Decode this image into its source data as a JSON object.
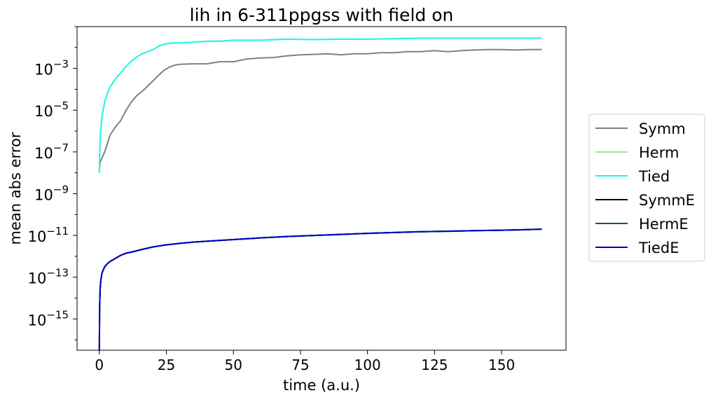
{
  "chart_data": {
    "type": "line",
    "title": "lih in 6-311ppgss with field on",
    "xlabel": "time (a.u.)",
    "ylabel": "mean abs error",
    "xlim": [
      -8.3,
      174
    ],
    "ylim_log10": [
      -16.5,
      -1.0
    ],
    "yscale": "log",
    "xticks": [
      0,
      25,
      50,
      75,
      100,
      125,
      150
    ],
    "yticks": [
      {
        "exp": -3,
        "base": "10",
        "sup": "−3"
      },
      {
        "exp": -5,
        "base": "10",
        "sup": "−5"
      },
      {
        "exp": -7,
        "base": "10",
        "sup": "−7"
      },
      {
        "exp": -9,
        "base": "10",
        "sup": "−9"
      },
      {
        "exp": -11,
        "base": "10",
        "sup": "−11"
      },
      {
        "exp": -13,
        "base": "10",
        "sup": "−13"
      },
      {
        "exp": -15,
        "base": "10",
        "sup": "−15"
      }
    ],
    "grid": false,
    "legend_position": "center-right-outside",
    "series": [
      {
        "name": "Symm",
        "color": "#808080",
        "x": [
          0,
          0.3,
          1,
          2,
          3,
          4,
          6,
          8,
          10,
          12,
          14,
          16,
          18,
          20,
          22,
          24,
          26,
          28,
          30,
          35,
          40,
          45,
          50,
          55,
          60,
          65,
          70,
          75,
          80,
          85,
          90,
          95,
          100,
          105,
          110,
          115,
          120,
          125,
          130,
          135,
          140,
          145,
          150,
          155,
          160,
          165
        ],
        "log10": [
          -7.8,
          -7.5,
          -7.3,
          -7.0,
          -6.6,
          -6.2,
          -5.8,
          -5.5,
          -5.0,
          -4.6,
          -4.3,
          -4.1,
          -3.85,
          -3.6,
          -3.35,
          -3.1,
          -2.95,
          -2.85,
          -2.8,
          -2.78,
          -2.78,
          -2.68,
          -2.68,
          -2.55,
          -2.5,
          -2.48,
          -2.4,
          -2.35,
          -2.33,
          -2.3,
          -2.35,
          -2.3,
          -2.3,
          -2.25,
          -2.25,
          -2.2,
          -2.2,
          -2.15,
          -2.2,
          -2.15,
          -2.12,
          -2.1,
          -2.1,
          -2.12,
          -2.1,
          -2.1
        ]
      },
      {
        "name": "Herm",
        "color": "#90ee90",
        "x": [
          0,
          0.2,
          0.5,
          1,
          2,
          3,
          4,
          6,
          8,
          10,
          12,
          14,
          16,
          18,
          20,
          22,
          24,
          26,
          28,
          30,
          35,
          40,
          45,
          50,
          60,
          70,
          80,
          90,
          100,
          110,
          120,
          130,
          140,
          150,
          160,
          165
        ],
        "log10": [
          -8.0,
          -6.8,
          -6.0,
          -5.3,
          -4.6,
          -4.2,
          -3.9,
          -3.5,
          -3.2,
          -2.9,
          -2.65,
          -2.45,
          -2.3,
          -2.2,
          -2.1,
          -1.95,
          -1.85,
          -1.8,
          -1.78,
          -1.78,
          -1.75,
          -1.7,
          -1.7,
          -1.65,
          -1.65,
          -1.6,
          -1.62,
          -1.6,
          -1.6,
          -1.58,
          -1.55,
          -1.55,
          -1.55,
          -1.55,
          -1.55,
          -1.55
        ]
      },
      {
        "name": "Tied",
        "color": "#20f5e8",
        "x": [
          0,
          0.2,
          0.5,
          1,
          2,
          3,
          4,
          6,
          8,
          10,
          12,
          14,
          16,
          18,
          20,
          22,
          24,
          26,
          28,
          30,
          35,
          40,
          45,
          50,
          60,
          70,
          80,
          90,
          100,
          110,
          120,
          130,
          140,
          150,
          160,
          165
        ],
        "log10": [
          -8.0,
          -6.8,
          -6.0,
          -5.3,
          -4.6,
          -4.2,
          -3.9,
          -3.5,
          -3.2,
          -2.9,
          -2.65,
          -2.45,
          -2.3,
          -2.2,
          -2.1,
          -1.95,
          -1.85,
          -1.8,
          -1.78,
          -1.78,
          -1.75,
          -1.7,
          -1.7,
          -1.65,
          -1.65,
          -1.6,
          -1.62,
          -1.6,
          -1.6,
          -1.58,
          -1.55,
          -1.55,
          -1.55,
          -1.55,
          -1.55,
          -1.55
        ]
      },
      {
        "name": "SymmE",
        "color": "#000000",
        "x": [
          0,
          0.1,
          0.3,
          0.6,
          1,
          2,
          3,
          4,
          6,
          8,
          10,
          12,
          15,
          20,
          25,
          30,
          35,
          40,
          50,
          60,
          70,
          80,
          90,
          100,
          110,
          120,
          130,
          140,
          150,
          160,
          165
        ],
        "log10": [
          -16.5,
          -14.5,
          -13.6,
          -13.1,
          -12.8,
          -12.5,
          -12.35,
          -12.25,
          -12.1,
          -11.95,
          -11.85,
          -11.8,
          -11.7,
          -11.55,
          -11.45,
          -11.38,
          -11.32,
          -11.28,
          -11.2,
          -11.12,
          -11.05,
          -11.0,
          -10.95,
          -10.9,
          -10.86,
          -10.82,
          -10.8,
          -10.77,
          -10.75,
          -10.72,
          -10.7
        ]
      },
      {
        "name": "HermE",
        "color": "#006400",
        "x": [
          0,
          0.1,
          0.3,
          0.6,
          1,
          2,
          3,
          4,
          6,
          8,
          10,
          12,
          15,
          20,
          25,
          30,
          35,
          40,
          50,
          60,
          70,
          80,
          90,
          100,
          110,
          120,
          130,
          140,
          150,
          160,
          165
        ],
        "log10": [
          -16.5,
          -14.5,
          -13.6,
          -13.1,
          -12.8,
          -12.5,
          -12.35,
          -12.25,
          -12.1,
          -11.95,
          -11.85,
          -11.8,
          -11.7,
          -11.55,
          -11.45,
          -11.38,
          -11.32,
          -11.28,
          -11.2,
          -11.12,
          -11.05,
          -11.0,
          -10.95,
          -10.9,
          -10.86,
          -10.82,
          -10.8,
          -10.77,
          -10.75,
          -10.72,
          -10.7
        ]
      },
      {
        "name": "TiedE",
        "color": "#0000cd",
        "x": [
          0,
          0.1,
          0.3,
          0.6,
          1,
          2,
          3,
          4,
          6,
          8,
          10,
          12,
          15,
          20,
          25,
          30,
          35,
          40,
          50,
          60,
          70,
          80,
          90,
          100,
          110,
          120,
          130,
          140,
          150,
          160,
          165
        ],
        "log10": [
          -16.5,
          -14.5,
          -13.6,
          -13.1,
          -12.8,
          -12.5,
          -12.35,
          -12.25,
          -12.1,
          -11.95,
          -11.85,
          -11.8,
          -11.7,
          -11.55,
          -11.45,
          -11.38,
          -11.32,
          -11.28,
          -11.2,
          -11.12,
          -11.05,
          -11.0,
          -10.95,
          -10.9,
          -10.86,
          -10.82,
          -10.8,
          -10.77,
          -10.75,
          -10.72,
          -10.7
        ]
      }
    ]
  }
}
